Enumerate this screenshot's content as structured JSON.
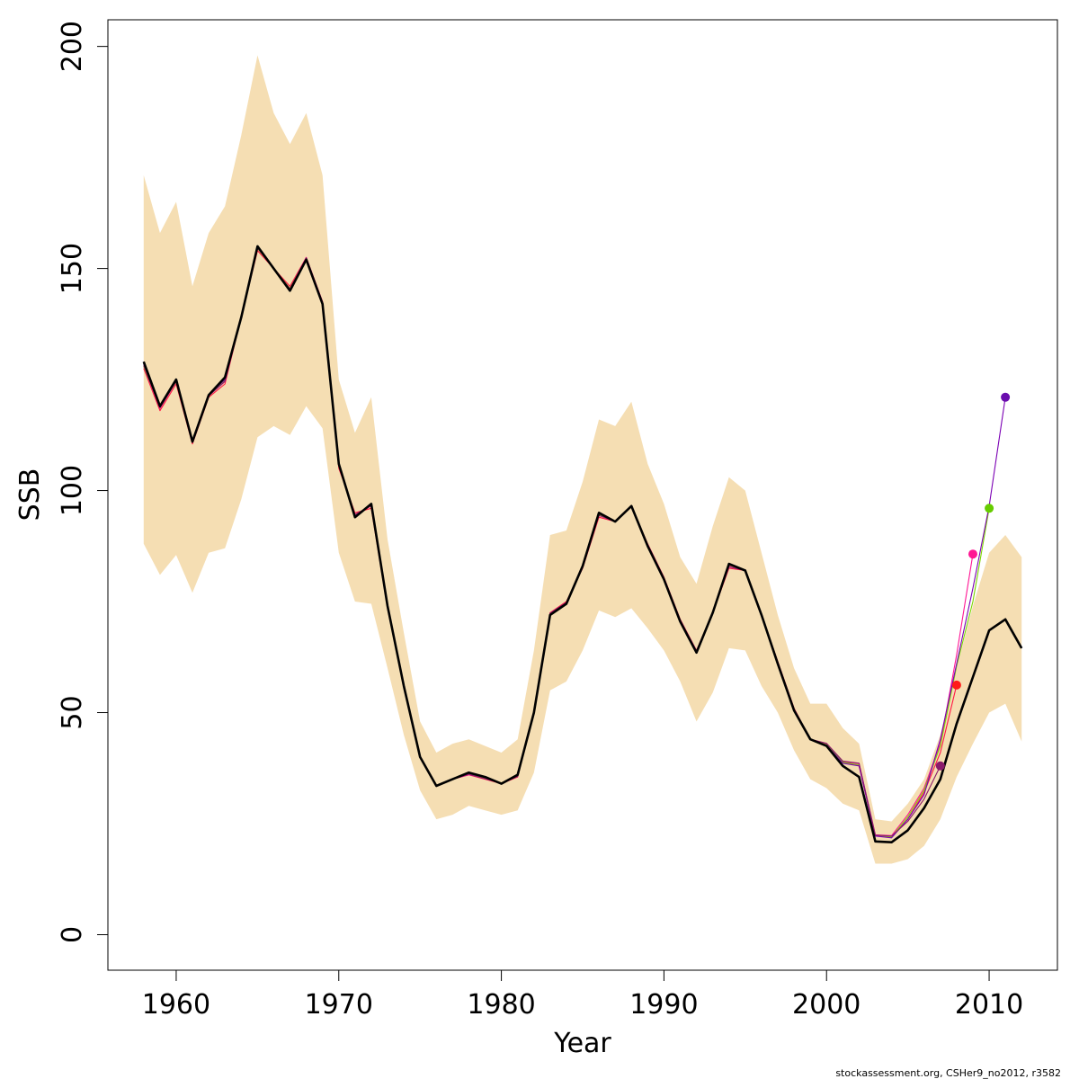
{
  "chart_data": {
    "type": "line",
    "xlabel": "Year",
    "ylabel": "SSB",
    "xlim": [
      1955.8,
      2014.2
    ],
    "ylim": [
      -8,
      206
    ],
    "x_ticks": [
      1960,
      1970,
      1980,
      1990,
      2000,
      2010
    ],
    "x_tick_labels": [
      "1960",
      "1970",
      "1980",
      "1990",
      "2000",
      "2010"
    ],
    "y_ticks": [
      0,
      50,
      100,
      150,
      200
    ],
    "y_tick_labels": [
      "0",
      "50",
      "100",
      "150",
      "200"
    ],
    "grid": false,
    "credit": "stockassessment.org, CSHer9_no2012, r3582",
    "band": {
      "color": "#f5deb3",
      "x": [
        1958,
        1959,
        1960,
        1961,
        1962,
        1963,
        1964,
        1965,
        1966,
        1967,
        1968,
        1969,
        1970,
        1971,
        1972,
        1973,
        1974,
        1975,
        1976,
        1977,
        1978,
        1979,
        1980,
        1981,
        1982,
        1983,
        1984,
        1985,
        1986,
        1987,
        1988,
        1989,
        1990,
        1991,
        1992,
        1993,
        1994,
        1995,
        1996,
        1997,
        1998,
        1999,
        2000,
        2001,
        2002,
        2003,
        2004,
        2005,
        2006,
        2007,
        2008,
        2009,
        2010,
        2011,
        2012
      ],
      "upper": [
        171,
        158,
        165,
        146,
        158,
        164,
        180,
        198,
        185,
        178,
        185,
        171,
        125,
        113,
        121,
        89,
        68,
        48,
        41,
        43,
        44,
        42.5,
        41,
        44,
        64,
        90,
        91,
        102,
        116,
        114.5,
        120,
        106,
        97,
        85,
        79,
        92,
        103,
        100,
        86,
        72,
        60,
        52,
        52,
        46.5,
        43,
        26,
        25.5,
        29.5,
        35,
        45,
        60,
        74,
        86,
        90,
        85
      ],
      "lower": [
        88,
        81,
        85.5,
        77,
        86,
        87,
        98,
        112,
        114.5,
        112.5,
        119,
        114,
        86,
        75,
        74.5,
        60,
        45,
        32.5,
        26,
        27,
        29,
        28,
        27,
        28,
        36.5,
        55,
        57,
        64,
        73,
        71.5,
        73.5,
        69,
        64,
        57,
        48,
        54.5,
        64.5,
        64,
        56,
        50,
        41.5,
        35,
        33,
        29.5,
        28,
        16,
        16,
        17,
        20,
        26,
        35.5,
        43,
        50,
        52,
        43.5
      ]
    },
    "series": [
      {
        "color": "#000000",
        "x": [
          1958,
          1959,
          1960,
          1961,
          1962,
          1963,
          1964,
          1965,
          1966,
          1967,
          1968,
          1969,
          1970,
          1971,
          1972,
          1973,
          1974,
          1975,
          1976,
          1977,
          1978,
          1979,
          1980,
          1981,
          1982,
          1983,
          1984,
          1985,
          1986,
          1987,
          1988,
          1989,
          1990,
          1991,
          1992,
          1993,
          1994,
          1995,
          1996,
          1997,
          1998,
          1999,
          2000,
          2001,
          2002,
          2003,
          2004,
          2005,
          2006,
          2007,
          2008,
          2009,
          2010,
          2011,
          2012
        ],
        "values": [
          129,
          119,
          125,
          111,
          121.5,
          125.5,
          139,
          155,
          150,
          145,
          152,
          142,
          106,
          94,
          97,
          74,
          56,
          40,
          33.5,
          35,
          36.5,
          35.5,
          34,
          36,
          50,
          72,
          74.5,
          83,
          95,
          93,
          96.5,
          87.5,
          80,
          70.5,
          63.5,
          72.5,
          83.5,
          82,
          72,
          61,
          50.5,
          44,
          42.5,
          38,
          35.5,
          21,
          20.8,
          23.5,
          28.5,
          35,
          47.5,
          58,
          68.5,
          71,
          64.5
        ]
      },
      {
        "color": "#ff1744",
        "x": [
          1958,
          1959,
          1960,
          1961,
          1962,
          1963,
          1964,
          1965,
          1966,
          1967,
          1968,
          1969,
          1970,
          1971,
          1972,
          1973,
          1974,
          1975,
          1976,
          1977,
          1978,
          1979,
          1980,
          1981,
          1982,
          1983,
          1984,
          1985,
          1986,
          1987,
          1988,
          1989,
          1990,
          1991,
          1992,
          1993,
          1994,
          1995,
          1996,
          1997,
          1998,
          1999,
          2000,
          2001,
          2002,
          2003,
          2004,
          2005,
          2006,
          2007,
          2008
        ],
        "values": [
          127.5,
          118,
          124,
          110.5,
          121,
          124,
          139,
          154,
          150,
          146,
          152.5,
          142.5,
          105,
          95,
          96,
          73.5,
          56,
          40,
          33.5,
          35,
          36,
          35,
          34,
          35.5,
          50,
          72.5,
          75,
          82.5,
          94,
          93,
          96.5,
          88,
          80.5,
          71,
          64,
          72.5,
          82.5,
          82,
          72,
          61.5,
          51,
          44,
          43,
          39,
          38,
          22.3,
          22,
          26,
          32,
          41,
          56.2
        ]
      },
      {
        "color": "#ff1493",
        "x": [
          1958,
          1959,
          1960,
          1961,
          1962,
          1963,
          1964,
          1965,
          1966,
          1967,
          1968,
          1969,
          1970,
          1971,
          1972,
          1973,
          1974,
          1975,
          1976,
          1977,
          1978,
          1979,
          1980,
          1981,
          1982,
          1983,
          1984,
          1985,
          1986,
          1987,
          1988,
          1989,
          1990,
          1991,
          1992,
          1993,
          1994,
          1995,
          1996,
          1997,
          1998,
          1999,
          2000,
          2001,
          2002,
          2003,
          2004,
          2005,
          2006,
          2007,
          2008,
          2009
        ],
        "values": [
          128,
          118.5,
          124.5,
          111,
          121.5,
          124.5,
          139,
          154.5,
          150,
          145.5,
          152.5,
          142.5,
          105.5,
          94.5,
          96.5,
          73.5,
          56,
          40,
          33.5,
          35,
          36,
          35.2,
          34.2,
          35.7,
          50,
          72.3,
          74.7,
          82.7,
          94.5,
          93,
          96.5,
          87.8,
          80.3,
          70.8,
          63.8,
          72.5,
          83,
          82,
          72,
          61.3,
          50.8,
          44,
          43,
          39,
          38.5,
          22.5,
          22.3,
          27,
          33,
          43,
          63,
          85.7
        ]
      },
      {
        "color": "#7cd600",
        "x": [
          1958,
          1959,
          1960,
          1961,
          1962,
          1963,
          1964,
          1965,
          1966,
          1967,
          1968,
          1969,
          1970,
          1971,
          1972,
          1973,
          1974,
          1975,
          1976,
          1977,
          1978,
          1979,
          1980,
          1981,
          1982,
          1983,
          1984,
          1985,
          1986,
          1987,
          1988,
          1989,
          1990,
          1991,
          1992,
          1993,
          1994,
          1995,
          1996,
          1997,
          1998,
          1999,
          2000,
          2001,
          2002,
          2003,
          2004,
          2005,
          2006,
          2007,
          2008,
          2009,
          2010
        ],
        "values": [
          128,
          118.8,
          124.5,
          111,
          121.5,
          124.8,
          139,
          154.5,
          150,
          145.5,
          152.3,
          142.3,
          105.5,
          94.5,
          96.7,
          73.7,
          56,
          40,
          33.5,
          35,
          36.2,
          35.3,
          34.2,
          35.8,
          50,
          72.2,
          74.6,
          82.8,
          94.6,
          93,
          96.5,
          87.7,
          80.2,
          70.7,
          63.7,
          72.5,
          83.2,
          82,
          72,
          61.2,
          50.7,
          44,
          42.8,
          38.8,
          38.2,
          22.3,
          22,
          26.5,
          32.5,
          42.5,
          60.5,
          75,
          96
        ]
      },
      {
        "color": "#7b00b4",
        "x": [
          1958,
          1959,
          1960,
          1961,
          1962,
          1963,
          1964,
          1965,
          1966,
          1967,
          1968,
          1969,
          1970,
          1971,
          1972,
          1973,
          1974,
          1975,
          1976,
          1977,
          1978,
          1979,
          1980,
          1981,
          1982,
          1983,
          1984,
          1985,
          1986,
          1987,
          1988,
          1989,
          1990,
          1991,
          1992,
          1993,
          1994,
          1995,
          1996,
          1997,
          1998,
          1999,
          2000,
          2001,
          2002,
          2003,
          2004,
          2005,
          2006,
          2007,
          2008,
          2009,
          2010,
          2011
        ],
        "values": [
          128.5,
          119,
          124.8,
          111,
          121.5,
          125,
          139,
          154.8,
          150,
          145.3,
          152.2,
          142.2,
          105.7,
          94.3,
          96.8,
          73.8,
          56,
          40,
          33.5,
          35,
          36.3,
          35.4,
          34.1,
          35.9,
          50,
          72.1,
          74.5,
          82.9,
          94.8,
          93,
          96.5,
          87.6,
          80.1,
          70.6,
          63.6,
          72.5,
          83.3,
          82,
          72,
          61.1,
          50.6,
          44,
          42.7,
          38.6,
          38,
          22.2,
          21.8,
          26,
          31.5,
          44,
          61,
          78,
          96.5,
          121
        ]
      },
      {
        "color": "#8b1a6b",
        "x": [
          1958,
          1959,
          1960,
          1961,
          1962,
          1963,
          1964,
          1965,
          1966,
          1967,
          1968,
          1969,
          1970,
          1971,
          1972,
          1973,
          1974,
          1975,
          1976,
          1977,
          1978,
          1979,
          1980,
          1981,
          1982,
          1983,
          1984,
          1985,
          1986,
          1987,
          1988,
          1989,
          1990,
          1991,
          1992,
          1993,
          1994,
          1995,
          1996,
          1997,
          1998,
          1999,
          2000,
          2001,
          2002,
          2003,
          2004,
          2005,
          2006,
          2007
        ],
        "values": [
          128.2,
          118.6,
          124.6,
          110.8,
          121.3,
          124.6,
          139,
          154.6,
          150,
          145.4,
          152.4,
          142.4,
          105.6,
          94.6,
          96.6,
          73.6,
          56,
          40,
          33.5,
          35,
          36.1,
          35.1,
          34.1,
          35.6,
          50,
          72.4,
          74.8,
          82.6,
          94.4,
          93,
          96.5,
          87.9,
          80.4,
          70.9,
          63.9,
          72.5,
          82.8,
          82,
          72,
          61.4,
          50.9,
          44,
          43.1,
          39.1,
          38.6,
          22.4,
          22.2,
          25.5,
          30.5,
          38
        ]
      },
      {
        "color": "#000000",
        "x": [
          1958,
          1959,
          1960,
          1961,
          1962,
          1963,
          1964,
          1965,
          1966,
          1967,
          1968,
          1969,
          1970,
          1971,
          1972,
          1973,
          1974,
          1975,
          1976,
          1977,
          1978,
          1979,
          1980,
          1981,
          1982,
          1983,
          1984,
          1985,
          1986,
          1987,
          1988,
          1989,
          1990,
          1991,
          1992,
          1993,
          1994,
          1995,
          1996,
          1997,
          1998,
          1999,
          2000,
          2001,
          2002,
          2003,
          2004,
          2005,
          2006,
          2007,
          2008,
          2009,
          2010,
          2011,
          2012
        ],
        "values": [
          129,
          119,
          125,
          111,
          121.5,
          125.5,
          139,
          155,
          150,
          145,
          152,
          142,
          106,
          94,
          97,
          74,
          56,
          40,
          33.5,
          35,
          36.5,
          35.5,
          34,
          36,
          50,
          72,
          74.5,
          83,
          95,
          93,
          96.5,
          87.5,
          80,
          70.5,
          63.5,
          72.5,
          83.5,
          82,
          72,
          61,
          50.5,
          44,
          42.5,
          38,
          35.5,
          21,
          20.8,
          23.5,
          28.5,
          35,
          47.5,
          58,
          68.5,
          71,
          64.5
        ]
      }
    ],
    "end_points": [
      {
        "x": 2007,
        "y": 38,
        "color": "#8b1a6b"
      },
      {
        "x": 2008,
        "y": 56.2,
        "color": "#ff1a1a"
      },
      {
        "x": 2009,
        "y": 85.7,
        "color": "#ff1493"
      },
      {
        "x": 2010,
        "y": 96,
        "color": "#66cc00"
      },
      {
        "x": 2011,
        "y": 121,
        "color": "#6a0dad"
      }
    ]
  }
}
